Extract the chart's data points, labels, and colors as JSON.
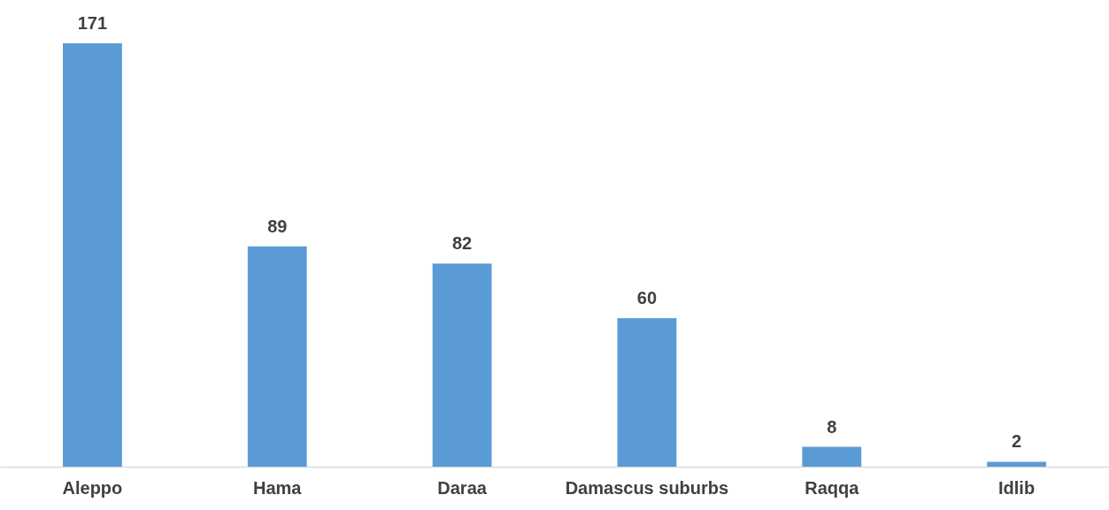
{
  "chart_data": {
    "type": "bar",
    "categories": [
      "Aleppo",
      "Hama",
      "Daraa",
      "Damascus suburbs",
      "Raqqa",
      "Idlib"
    ],
    "values": [
      171,
      89,
      82,
      60,
      8,
      2
    ],
    "color": "#5b9bd5",
    "data_labels": true
  }
}
